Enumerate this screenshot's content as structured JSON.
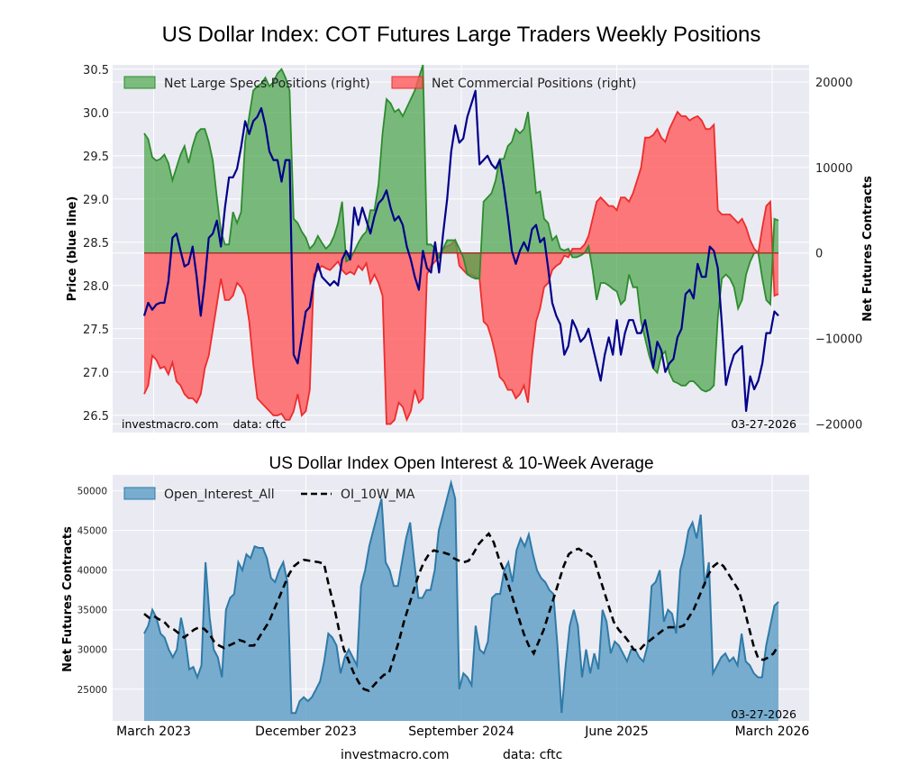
{
  "title": "US Dollar Index: COT Futures Large Traders Weekly Positions",
  "top_panel": {
    "left_axis_label": "Price (blue line)",
    "right_axis_label": "Net Futures Contracts",
    "left_ticks": [
      "26.5",
      "27.0",
      "27.5",
      "28.0",
      "28.5",
      "29.0",
      "29.5",
      "30.0",
      "30.5"
    ],
    "right_ticks": [
      "−20000",
      "−10000",
      "0",
      "10000",
      "20000"
    ],
    "legend": [
      "Net Large Specs Positions (right)",
      "Net Commercial Positions (right)"
    ],
    "source_note": "investmacro.com    data: cftc",
    "date_note": "03-27-2026"
  },
  "bottom_panel": {
    "title": "US Dollar Index Open Interest & 10-Week Average",
    "y_axis_label": "Net Futures Contracts",
    "y_ticks": [
      "25000",
      "30000",
      "35000",
      "40000",
      "45000",
      "50000"
    ],
    "legend": [
      "Open_Interest_All",
      "OI_10W_MA"
    ],
    "date_note": "03-27-2026"
  },
  "x_tick_labels": [
    "March 2023",
    "December 2023",
    "September 2024",
    "June 2025",
    "March 2026"
  ],
  "footer": {
    "site": "investmacro.com",
    "data": "data: cftc"
  },
  "colors": {
    "specs_fill": "#4ca64c",
    "specs_line": "#2e8b2e",
    "comm_fill": "#ff5a5a",
    "comm_line": "#ee2c2c",
    "price_line": "#00008b",
    "oi_fill": "#5b9cc4",
    "oi_line": "#2f7aa8",
    "ma_line": "#000000",
    "axes_bg": "#eaeaf2",
    "grid": "#ffffff"
  },
  "chart_data": [
    {
      "type": "area",
      "panel": "top",
      "title": "US Dollar Index: COT Futures Large Traders Weekly Positions",
      "x_range": [
        "March 2023",
        "March 2026"
      ],
      "x_ticks": [
        "March 2023",
        "December 2023",
        "September 2024",
        "June 2025",
        "March 2026"
      ],
      "y_left_label": "Price (blue line)",
      "y_left_lim": [
        26.3,
        30.55
      ],
      "y_right_label": "Net Futures Contracts",
      "y_right_lim": [
        -21000,
        22000
      ],
      "grid": true,
      "legend_position": "top-left",
      "series": [
        {
          "name": "Net Large Specs Positions (right)",
          "axis": "right",
          "values": [
            14000,
            13300,
            11200,
            10800,
            11000,
            11500,
            10500,
            8500,
            10000,
            11500,
            12500,
            10500,
            12500,
            14000,
            14500,
            14500,
            13000,
            10800,
            6500,
            2500,
            1000,
            1000,
            4800,
            3500,
            4800,
            13000,
            16000,
            19000,
            19500,
            19800,
            20500,
            19500,
            20000,
            21000,
            21500,
            20500,
            19000,
            4000,
            3500,
            2500,
            1800,
            500,
            1000,
            2000,
            1200,
            500,
            1000,
            2000,
            3500,
            6000,
            -1000,
            -700,
            200,
            1200,
            2000,
            2500,
            5000,
            5000,
            8000,
            14000,
            18000,
            17500,
            16500,
            16800,
            16000,
            17000,
            18000,
            19000,
            20500,
            22000,
            1000,
            1000,
            500,
            -500,
            500,
            1500,
            1500,
            1500,
            500,
            -500,
            -2500,
            -2800,
            -3000,
            -3000,
            6000,
            6500,
            7000,
            8500,
            11000,
            11000,
            12500,
            13000,
            14500,
            14000,
            14500,
            16500,
            12000,
            7000,
            7200,
            4000,
            3500,
            1500,
            2000,
            500,
            300,
            500,
            -500,
            -500,
            -300,
            0,
            800,
            -2000,
            -5500,
            -3500,
            -3500,
            -3800,
            -4200,
            -4500,
            -6000,
            -5500,
            -2500,
            -4000,
            -4000,
            -8000,
            -10000,
            -12000,
            -13500,
            -14000,
            -12000,
            -11500,
            -14000,
            -15000,
            -15200,
            -15500,
            -15500,
            -15000,
            -15000,
            -15500,
            -16000,
            -16200,
            -16000,
            -15500,
            -7500,
            -3000,
            -2500,
            -3000,
            -4000,
            -6500,
            -5500,
            -2500,
            -1000,
            0,
            0,
            -3000,
            -5500,
            -6000,
            4000,
            3800
          ]
        },
        {
          "name": "Net Commercial Positions (right)",
          "axis": "right",
          "values": [
            -16500,
            -15500,
            -12000,
            -12500,
            -13500,
            -13300,
            -14200,
            -12800,
            -15000,
            -15500,
            -16500,
            -17000,
            -17000,
            -17500,
            -16500,
            -13500,
            -12000,
            -9000,
            -6000,
            -3000,
            -5500,
            -5500,
            -5000,
            -3500,
            -4000,
            -5000,
            -8000,
            -13000,
            -17000,
            -17500,
            -18000,
            -18500,
            -19000,
            -19000,
            -18800,
            -19500,
            -19500,
            -18500,
            -16500,
            -19000,
            -18500,
            -16000,
            -2500,
            -2000,
            -1500,
            -1800,
            -2000,
            -1500,
            -1000,
            -2000,
            -2500,
            -2200,
            -2500,
            -1500,
            -2000,
            -1200,
            -3500,
            -2500,
            -3500,
            -5000,
            -20000,
            -20000,
            -19500,
            -17500,
            -18000,
            -19500,
            -18500,
            -16000,
            -17500,
            -17000,
            -2500,
            -1500,
            -1000,
            -500,
            500,
            800,
            1000,
            1500,
            -1500,
            -2000,
            -2500,
            -2500,
            -2800,
            -3000,
            -8000,
            -8500,
            -10000,
            -12000,
            -14500,
            -15000,
            -16000,
            -16000,
            -17000,
            -16500,
            -15500,
            -17500,
            -12000,
            -8000,
            -6500,
            -4000,
            -3500,
            -2000,
            -1500,
            -1200,
            -300,
            -500,
            500,
            500,
            500,
            1000,
            2000,
            4000,
            6000,
            6500,
            6000,
            5500,
            5500,
            5000,
            6500,
            6500,
            6000,
            7000,
            8500,
            10000,
            13500,
            13500,
            13800,
            14500,
            13500,
            13000,
            14500,
            15500,
            16500,
            16000,
            16000,
            15500,
            15800,
            16000,
            15500,
            14500,
            14500,
            15000,
            5000,
            4500,
            4500,
            4500,
            4000,
            3500,
            4000,
            3000,
            1500,
            500,
            0,
            3000,
            5500,
            6000,
            -5000,
            -4800
          ]
        },
        {
          "name": "Price",
          "axis": "left",
          "values": [
            27.65,
            27.8,
            27.72,
            27.78,
            27.8,
            27.8,
            28.05,
            28.55,
            28.6,
            28.4,
            28.22,
            28.25,
            28.45,
            28.1,
            27.65,
            28.05,
            28.55,
            28.6,
            28.75,
            28.45,
            28.9,
            29.25,
            29.25,
            29.35,
            29.6,
            29.9,
            29.75,
            29.9,
            29.95,
            30.05,
            29.85,
            29.55,
            29.45,
            29.45,
            29.2,
            29.45,
            29.45,
            27.2,
            27.1,
            27.4,
            27.7,
            27.75,
            28.05,
            28.25,
            28.1,
            28.05,
            28.0,
            28.05,
            28.0,
            28.3,
            28.4,
            28.3,
            28.9,
            28.7,
            28.9,
            28.75,
            28.6,
            28.8,
            28.95,
            29.0,
            29.1,
            28.9,
            28.75,
            28.8,
            28.7,
            28.45,
            28.3,
            28.1,
            27.95,
            28.4,
            28.2,
            28.15,
            28.5,
            28.15,
            28.6,
            29.0,
            29.55,
            29.85,
            29.65,
            29.7,
            29.95,
            30.1,
            30.25,
            29.4,
            29.45,
            29.5,
            29.4,
            29.35,
            29.45,
            29.15,
            28.8,
            28.4,
            28.25,
            28.4,
            28.5,
            28.4,
            28.65,
            28.7,
            28.5,
            28.55,
            28.2,
            27.8,
            27.65,
            27.55,
            27.2,
            27.3,
            27.6,
            27.5,
            27.35,
            27.4,
            27.5,
            27.3,
            27.1,
            26.9,
            27.2,
            27.4,
            27.2,
            27.6,
            27.2,
            27.45,
            27.6,
            27.6,
            27.45,
            27.45,
            27.6,
            27.35,
            27.05,
            27.35,
            27.25,
            27.0,
            27.1,
            27.15,
            27.4,
            27.5,
            27.9,
            27.95,
            27.85,
            28.25,
            28.1,
            28.1,
            28.45,
            28.4,
            28.2,
            27.55,
            26.85,
            27.05,
            27.2,
            27.25,
            27.3,
            26.55,
            26.95,
            26.8,
            26.9,
            27.1,
            27.45,
            27.45,
            27.7,
            27.65
          ]
        }
      ]
    },
    {
      "type": "area",
      "panel": "bottom",
      "title": "US Dollar Index Open Interest & 10-Week Average",
      "x_range": [
        "March 2023",
        "March 2026"
      ],
      "x_ticks": [
        "March 2023",
        "December 2023",
        "September 2024",
        "June 2025",
        "March 2026"
      ],
      "ylabel": "Net Futures Contracts",
      "ylim": [
        21000,
        52000
      ],
      "grid": true,
      "legend_position": "top-left",
      "series": [
        {
          "name": "Open_Interest_All",
          "values": [
            32000,
            33000,
            35000,
            34000,
            32000,
            31500,
            30000,
            29000,
            30000,
            34000,
            31500,
            27500,
            27800,
            26500,
            28000,
            41000,
            34000,
            30000,
            29000,
            26500,
            35000,
            36500,
            37000,
            41000,
            40000,
            42000,
            41500,
            43000,
            42800,
            42800,
            41500,
            39000,
            38500,
            40000,
            41000,
            38500,
            22000,
            22000,
            23500,
            24000,
            23500,
            24000,
            25000,
            26000,
            28500,
            32000,
            31500,
            30500,
            27000,
            29000,
            30000,
            29000,
            28000,
            38000,
            40000,
            43000,
            45000,
            47000,
            49000,
            41000,
            40000,
            38000,
            38000,
            41000,
            44000,
            46000,
            41000,
            36500,
            36500,
            37500,
            37500,
            40000,
            45000,
            47000,
            49000,
            51000,
            49000,
            25000,
            27000,
            26500,
            25500,
            33000,
            30000,
            29500,
            31000,
            36500,
            37000,
            37000,
            40000,
            41000,
            38500,
            42500,
            44000,
            43000,
            44500,
            42000,
            40000,
            39000,
            38500,
            37500,
            37000,
            30500,
            22000,
            28000,
            33000,
            35000,
            33000,
            26500,
            30000,
            27000,
            29500,
            27500,
            35000,
            33500,
            29500,
            31000,
            30500,
            29500,
            28500,
            30000,
            30000,
            29000,
            28500,
            30500,
            38000,
            38500,
            40000,
            33500,
            35000,
            34500,
            32000,
            40000,
            42000,
            45000,
            46000,
            44000,
            47000,
            38000,
            41000,
            27000,
            28000,
            29000,
            29500,
            28500,
            29000,
            28000,
            32000,
            28500,
            28000,
            27000,
            26500,
            26500,
            30500,
            33000,
            35500,
            36000
          ]
        },
        {
          "name": "OI_10W_MA",
          "values": [
            34500,
            34000,
            34200,
            33800,
            33500,
            32800,
            32500,
            32000,
            31500,
            32000,
            32500,
            32800,
            32600,
            32000,
            31000,
            30500,
            30200,
            30500,
            30800,
            31200,
            31000,
            30500,
            30500,
            31500,
            32500,
            33500,
            35000,
            36500,
            38000,
            39500,
            40500,
            41000,
            41300,
            41200,
            41100,
            41000,
            40800,
            38000,
            35500,
            32500,
            30000,
            28500,
            27000,
            25800,
            25000,
            24800,
            25500,
            26200,
            26800,
            27000,
            29000,
            31000,
            33500,
            35500,
            37500,
            39500,
            41000,
            42000,
            42500,
            42300,
            42200,
            42000,
            41500,
            41200,
            41000,
            41200,
            42200,
            43300,
            44000,
            44600,
            43500,
            41500,
            40000,
            38000,
            36000,
            34000,
            32000,
            30500,
            29500,
            31000,
            32500,
            34500,
            36500,
            38500,
            40500,
            42000,
            42500,
            42700,
            42300,
            42000,
            41500,
            39500,
            37500,
            35500,
            33500,
            32500,
            31800,
            31000,
            30000,
            29800,
            30500,
            31000,
            31500,
            32000,
            32500,
            32800,
            32800,
            32800,
            33000,
            34000,
            35000,
            36500,
            38000,
            39500,
            40500,
            41000,
            40500,
            39500,
            38500,
            37500,
            35500,
            33000,
            30500,
            28800,
            28700,
            29000,
            29500,
            30500
          ]
        }
      ]
    }
  ]
}
